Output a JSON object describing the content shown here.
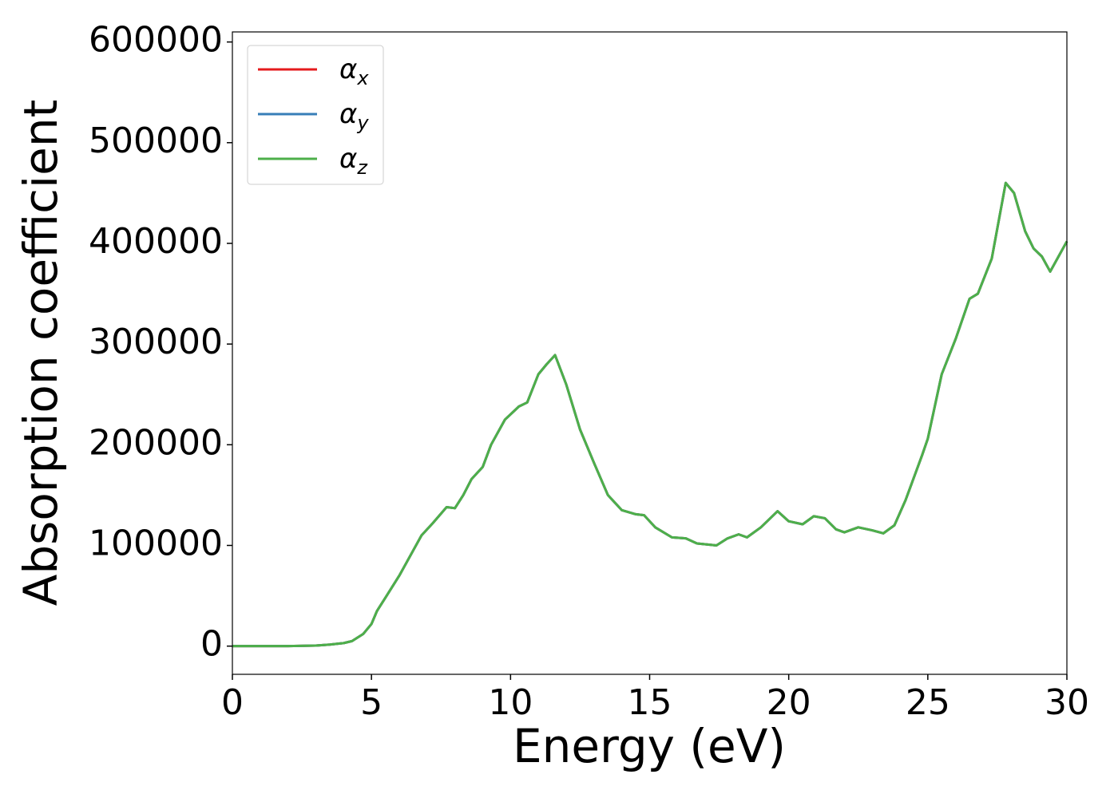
{
  "chart_data": {
    "type": "line",
    "x_label": "Energy (eV)",
    "y_label": "Absorption coefficient",
    "x": [
      0,
      1,
      2,
      3,
      3.5,
      4,
      4.3,
      4.7,
      5,
      5.2,
      5.5,
      6,
      6.5,
      6.8,
      7.2,
      7.7,
      8,
      8.3,
      8.6,
      9,
      9.3,
      9.8,
      10.3,
      10.6,
      11,
      11.3,
      11.6,
      12,
      12.5,
      13,
      13.5,
      14,
      14.5,
      14.8,
      15.2,
      15.8,
      16.3,
      16.7,
      17.4,
      17.8,
      18.2,
      18.5,
      19,
      19.6,
      20,
      20.5,
      20.9,
      21.3,
      21.7,
      22,
      22.5,
      23,
      23.4,
      23.8,
      24.2,
      24.8,
      25,
      25.5,
      26,
      26.5,
      26.8,
      27.3,
      27.8,
      28.1,
      28.5,
      28.8,
      29.1,
      29.4,
      29.7,
      30
    ],
    "series": [
      {
        "name": "αx",
        "color": "#e41a1c",
        "values": [
          0,
          0,
          0,
          500,
          1500,
          3000,
          5000,
          12000,
          22000,
          35000,
          48000,
          70000,
          95000,
          110000,
          122000,
          138000,
          137000,
          150000,
          166000,
          178000,
          200000,
          225000,
          238000,
          242000,
          270000,
          280000,
          289000,
          260000,
          215000,
          182000,
          150000,
          135000,
          131000,
          130000,
          118000,
          108000,
          107000,
          102000,
          100000,
          107000,
          111000,
          108000,
          118000,
          134000,
          124000,
          121000,
          129000,
          127000,
          116000,
          113000,
          118000,
          115000,
          112000,
          120000,
          145000,
          190000,
          206000,
          270000,
          305000,
          345000,
          350000,
          385000,
          460000,
          450000,
          412000,
          395000,
          387000,
          372000,
          387000,
          402000
        ]
      },
      {
        "name": "αy",
        "color": "#377eb8",
        "values": [
          0,
          0,
          0,
          500,
          1500,
          3000,
          5000,
          12000,
          22000,
          35000,
          48000,
          70000,
          95000,
          110000,
          122000,
          138000,
          137000,
          150000,
          166000,
          178000,
          200000,
          225000,
          238000,
          242000,
          270000,
          280000,
          289000,
          260000,
          215000,
          182000,
          150000,
          135000,
          131000,
          130000,
          118000,
          108000,
          107000,
          102000,
          100000,
          107000,
          111000,
          108000,
          118000,
          134000,
          124000,
          121000,
          129000,
          127000,
          116000,
          113000,
          118000,
          115000,
          112000,
          120000,
          145000,
          190000,
          206000,
          270000,
          305000,
          345000,
          350000,
          385000,
          460000,
          450000,
          412000,
          395000,
          387000,
          372000,
          387000,
          402000
        ]
      },
      {
        "name": "αz",
        "color": "#4daf4a",
        "values": [
          0,
          0,
          0,
          500,
          1500,
          3000,
          5000,
          12000,
          22000,
          35000,
          48000,
          70000,
          95000,
          110000,
          122000,
          138000,
          137000,
          150000,
          166000,
          178000,
          200000,
          225000,
          238000,
          242000,
          270000,
          280000,
          289000,
          260000,
          215000,
          182000,
          150000,
          135000,
          131000,
          130000,
          118000,
          108000,
          107000,
          102000,
          100000,
          107000,
          111000,
          108000,
          118000,
          134000,
          124000,
          121000,
          129000,
          127000,
          116000,
          113000,
          118000,
          115000,
          112000,
          120000,
          145000,
          190000,
          206000,
          270000,
          305000,
          345000,
          350000,
          385000,
          460000,
          450000,
          412000,
          395000,
          387000,
          372000,
          387000,
          402000
        ]
      }
    ],
    "xlim": [
      0,
      30
    ],
    "xticks": [
      0,
      5,
      10,
      15,
      20,
      25,
      30
    ],
    "ylim": [
      -28000,
      610000
    ],
    "yticks": [
      0,
      100000,
      200000,
      300000,
      400000,
      500000,
      600000
    ],
    "legend": "upper left",
    "grid": false
  }
}
